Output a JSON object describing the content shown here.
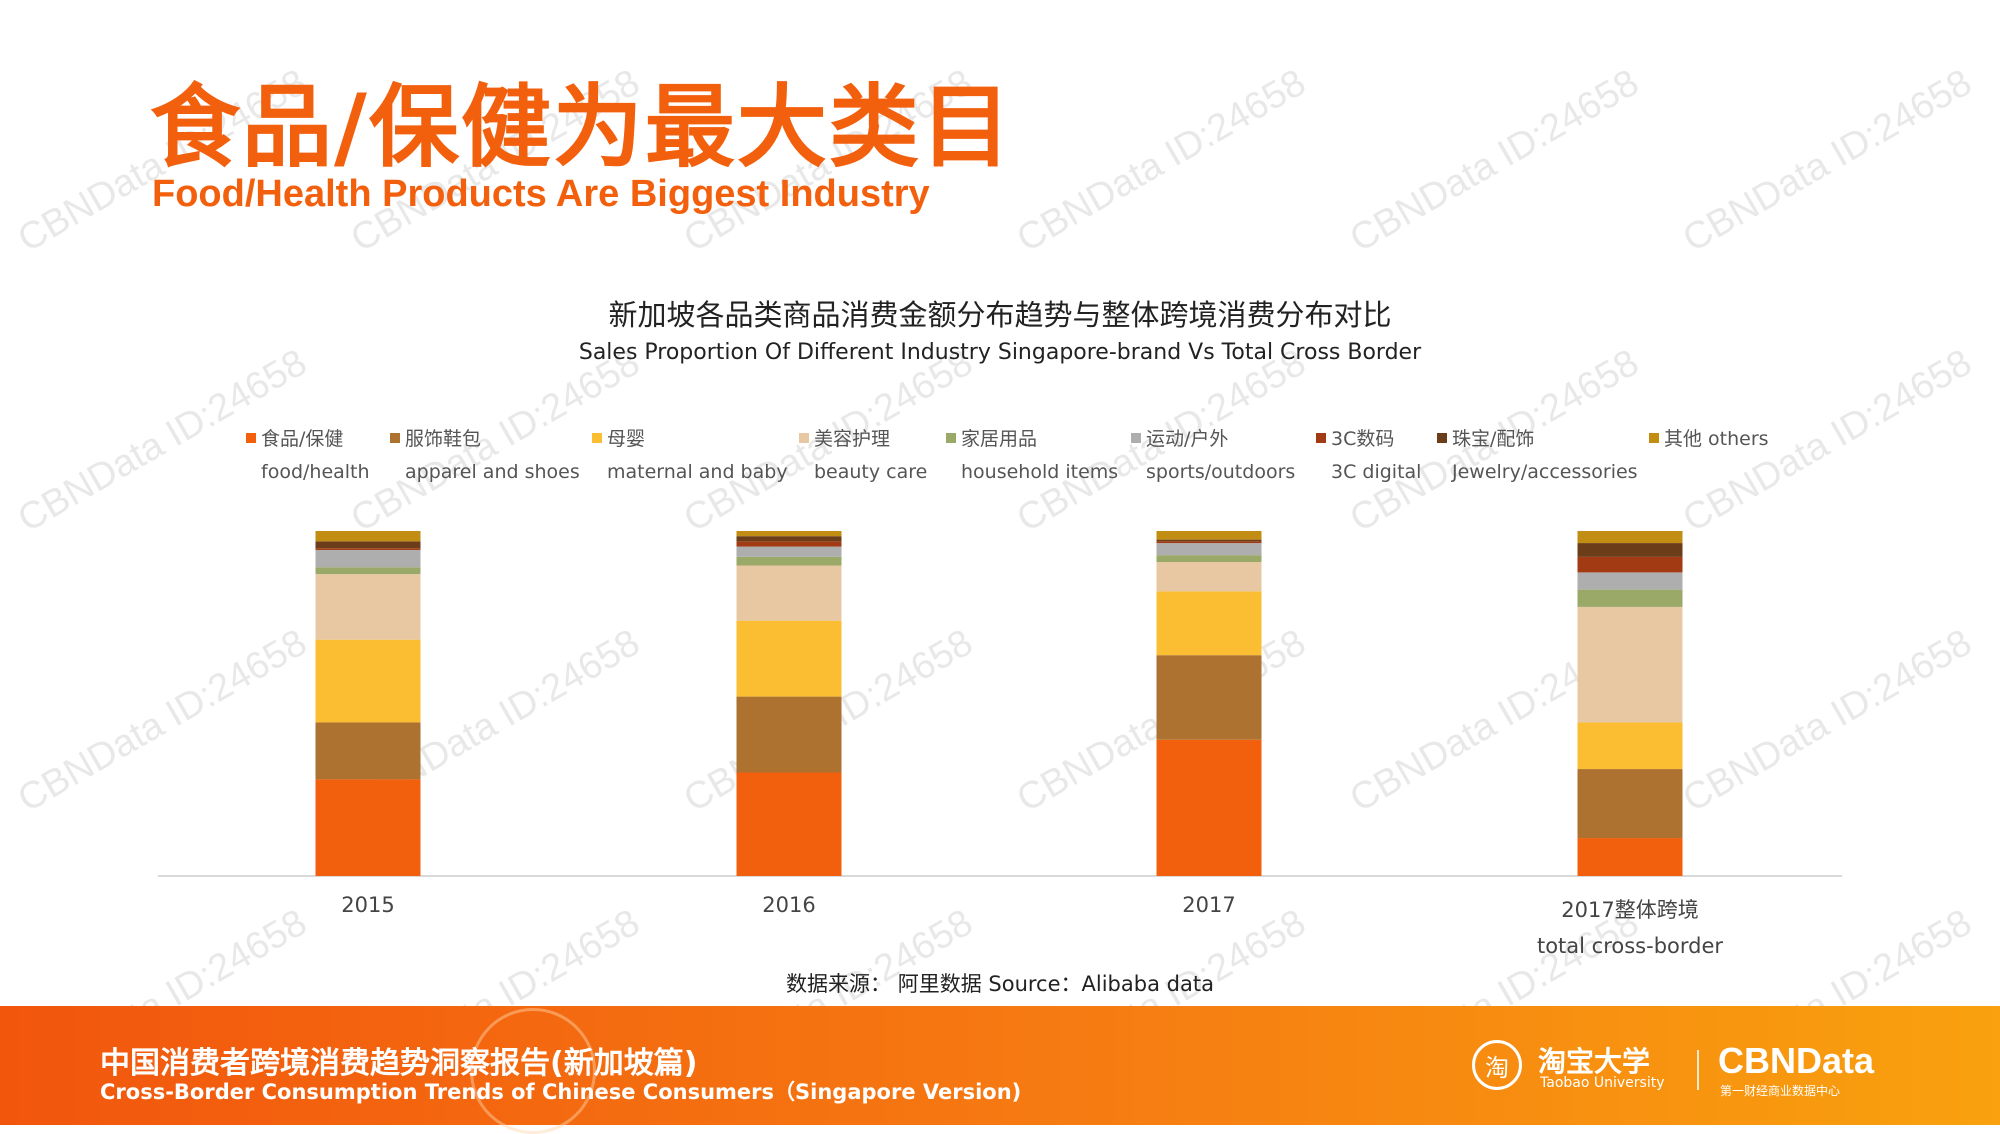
{
  "title_zh": "食品/保健为最大类目",
  "title_en": "Food/Health Products Are Biggest Industry",
  "watermark": "CBNData ID:24658",
  "source": "数据来源： 阿里数据  Source：Alibaba data",
  "footer": {
    "title_zh": "中国消费者跨境消费趋势洞察报告(新加坡篇)",
    "title_en": "Cross-Border Consumption Trends of Chinese Consumers（Singapore Version)",
    "taobao_icon": "淘",
    "taobao_name": "淘宝大学",
    "taobao_sub": "Taobao University",
    "cbn_name": "CBNData",
    "cbn_sub": "第一财经商业数据中心"
  },
  "colors": {
    "accent": "#f2600e",
    "series": [
      "#f2600e",
      "#ad7230",
      "#fbbd32",
      "#e8c8a2",
      "#9aa868",
      "#aeaeae",
      "#a23b14",
      "#6b3d19",
      "#c18d12"
    ]
  },
  "chart_data": {
    "type": "bar",
    "stacked": true,
    "percent": true,
    "title": "新加坡各品类商品消费金额分布趋势与整体跨境消费分布对比",
    "subtitle": "Sales Proportion Of Different Industry Singapore-brand Vs Total Cross Border",
    "categories": [
      {
        "label": "2015",
        "label2": ""
      },
      {
        "label": "2016",
        "label2": ""
      },
      {
        "label": "2017",
        "label2": ""
      },
      {
        "label": "2017整体跨境",
        "label2": "total cross-border"
      }
    ],
    "ylim": [
      0,
      100
    ],
    "legend_position": "top",
    "series": [
      {
        "name": "食品/保健",
        "name_en": "food/health",
        "values": [
          28,
          30,
          39.5,
          11
        ]
      },
      {
        "name": "服饰鞋包",
        "name_en": "apparel and shoes",
        "values": [
          16.5,
          22,
          24.5,
          20
        ]
      },
      {
        "name": "母婴",
        "name_en": "maternal and baby",
        "values": [
          24,
          22,
          18.5,
          13.5
        ]
      },
      {
        "name": "美容护理",
        "name_en": "beauty  care",
        "values": [
          19,
          16,
          8.5,
          33.5
        ]
      },
      {
        "name": "家居用品",
        "name_en": "household items",
        "values": [
          2,
          2.5,
          2,
          5
        ]
      },
      {
        "name": "运动/户外",
        "name_en": "sports/outdoors",
        "values": [
          5,
          3,
          3.5,
          5
        ]
      },
      {
        "name": "3C数码",
        "name_en": "3C digital",
        "values": [
          0.5,
          1.5,
          0.5,
          4.5
        ]
      },
      {
        "name": "珠宝/配饰",
        "name_en": "Jewelry/accessories",
        "values": [
          2,
          1.5,
          0.5,
          4
        ]
      },
      {
        "name": "其他 others",
        "name_en": "",
        "values": [
          3,
          1.5,
          2.5,
          3.5
        ]
      }
    ]
  }
}
